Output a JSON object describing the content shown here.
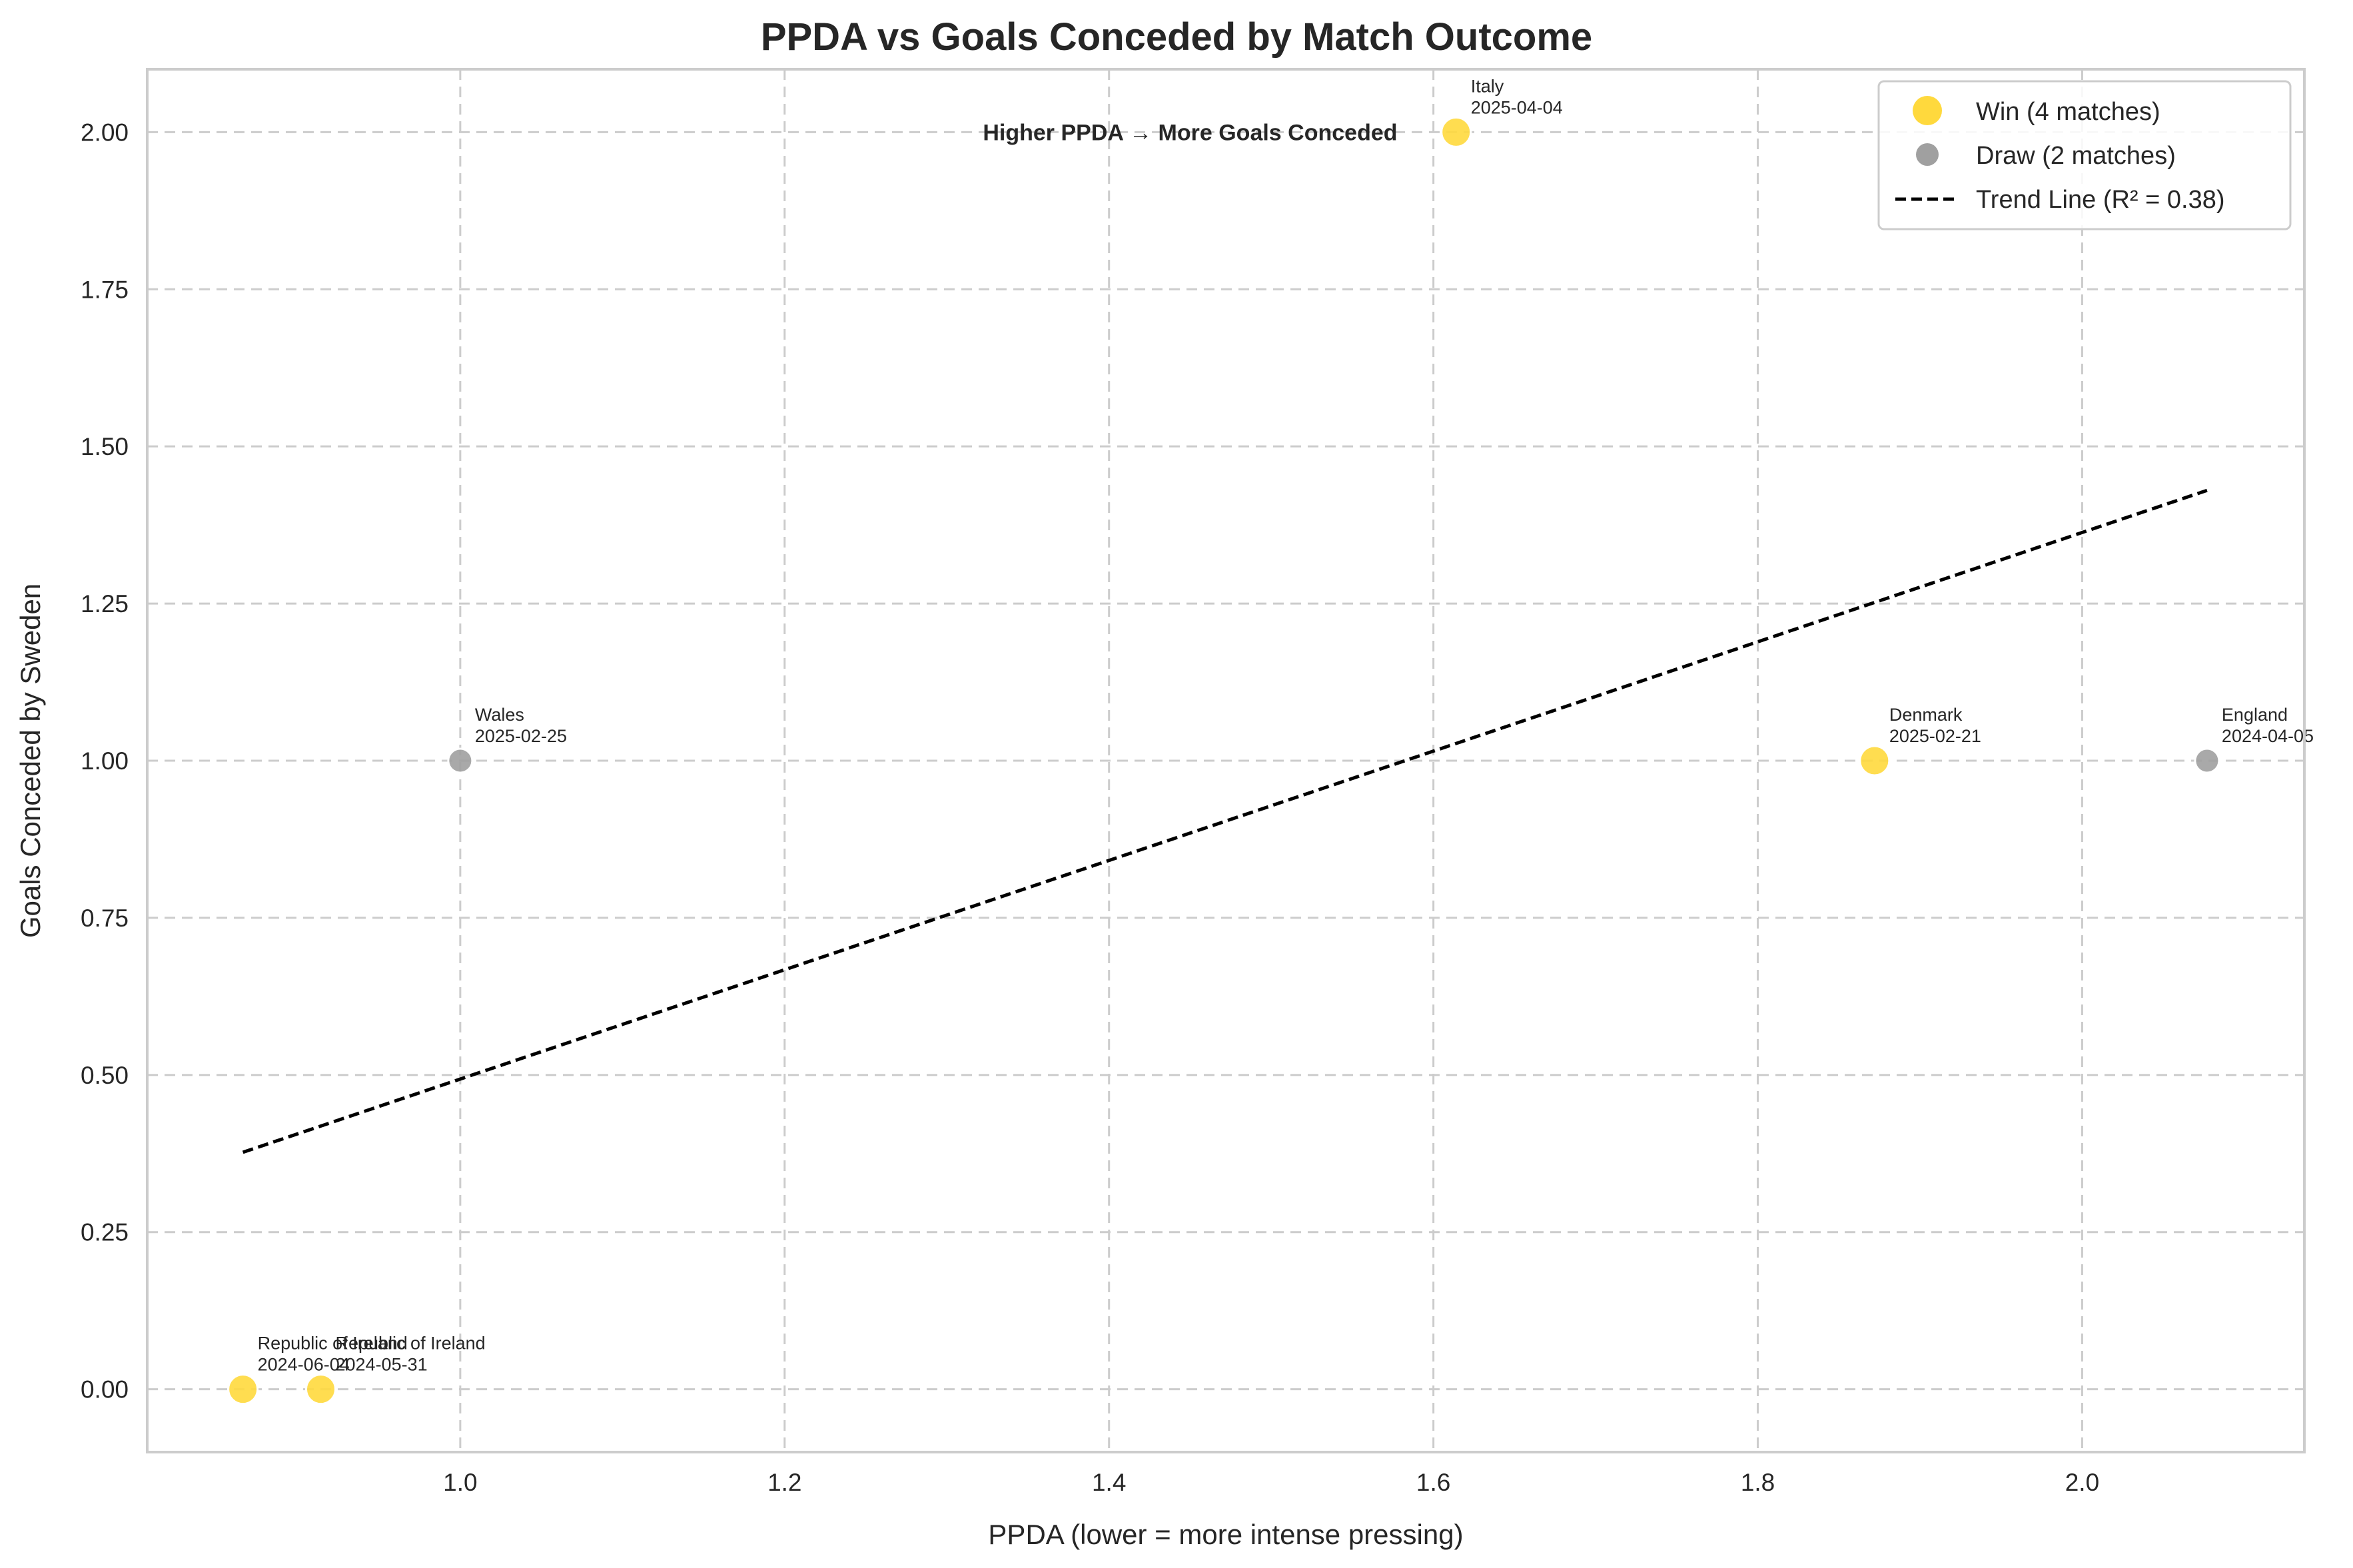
{
  "chart_data": {
    "type": "scatter",
    "title": "PPDA vs Goals Conceded by Match Outcome",
    "xlabel": "PPDA (lower = more intense pressing)",
    "ylabel": "Goals Conceded by Sweden",
    "xlim": [
      0.807,
      2.137
    ],
    "ylim": [
      -0.1,
      2.1
    ],
    "xticks": [
      "1.0",
      "1.2",
      "1.4",
      "1.6",
      "1.8",
      "2.0"
    ],
    "yticks": [
      "0.00",
      "0.25",
      "0.50",
      "0.75",
      "1.00",
      "1.25",
      "1.50",
      "1.75",
      "2.00"
    ],
    "grid": true,
    "legend_position": "top-right",
    "colors": {
      "win": "#FFD93D",
      "draw": "#A0A0A0",
      "trend": "#000000"
    },
    "series": [
      {
        "name": "Win (4 matches)",
        "outcome": "win",
        "points": [
          {
            "x": 0.866,
            "y": 0,
            "label": "Republic of Ireland",
            "date": "2024-06-04"
          },
          {
            "x": 0.914,
            "y": 0,
            "label": "Republic of Ireland",
            "date": "2024-05-31"
          },
          {
            "x": 1.614,
            "y": 2,
            "label": "Italy",
            "date": "2025-04-04"
          },
          {
            "x": 1.872,
            "y": 1,
            "label": "Denmark",
            "date": "2025-02-21"
          }
        ]
      },
      {
        "name": "Draw (2 matches)",
        "outcome": "draw",
        "points": [
          {
            "x": 1.0,
            "y": 1,
            "label": "Wales",
            "date": "2025-02-25"
          },
          {
            "x": 2.077,
            "y": 1,
            "label": "England",
            "date": "2024-04-05"
          }
        ]
      }
    ],
    "trend_line": {
      "name": "Trend Line (R² = 0.38)",
      "x": [
        0.866,
        2.077
      ],
      "y": [
        0.377,
        1.43
      ]
    },
    "annotation": "Higher PPDA → More Goals Conceded",
    "annotation_at": {
      "x": 1.45,
      "y": 2.0
    }
  }
}
